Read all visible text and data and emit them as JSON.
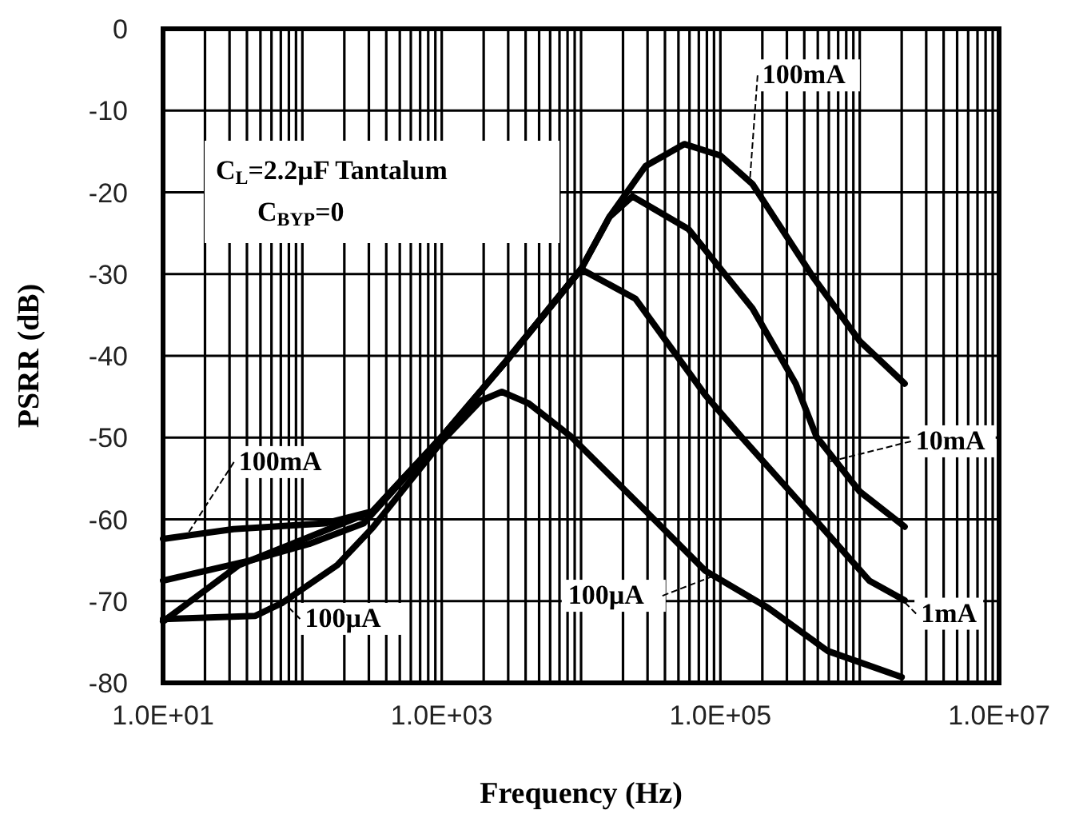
{
  "chart_data": {
    "type": "line",
    "xlabel": "Frequency (Hz)",
    "ylabel": "PSRR (dB)",
    "log": "x",
    "grid": true,
    "marker": "none",
    "line_style": "solid",
    "xlim": [
      10,
      10000000
    ],
    "ylim": [
      -80,
      0
    ],
    "xticks": [
      {
        "value": 10,
        "label": "1.0E+01"
      },
      {
        "value": 20,
        "label": null
      },
      {
        "value": 30,
        "label": null
      },
      {
        "value": 40,
        "label": null
      },
      {
        "value": 50,
        "label": null
      },
      {
        "value": 60,
        "label": null
      },
      {
        "value": 70,
        "label": null
      },
      {
        "value": 80,
        "label": null
      },
      {
        "value": 90,
        "label": null
      },
      {
        "value": 100,
        "label": null
      },
      {
        "value": 200,
        "label": null
      },
      {
        "value": 300,
        "label": null
      },
      {
        "value": 400,
        "label": null
      },
      {
        "value": 500,
        "label": null
      },
      {
        "value": 600,
        "label": null
      },
      {
        "value": 700,
        "label": null
      },
      {
        "value": 800,
        "label": null
      },
      {
        "value": 900,
        "label": null
      },
      {
        "value": 1000,
        "label": "1.0E+03"
      },
      {
        "value": 2000,
        "label": null
      },
      {
        "value": 3000,
        "label": null
      },
      {
        "value": 4000,
        "label": null
      },
      {
        "value": 5000,
        "label": null
      },
      {
        "value": 6000,
        "label": null
      },
      {
        "value": 7000,
        "label": null
      },
      {
        "value": 8000,
        "label": null
      },
      {
        "value": 9000,
        "label": null
      },
      {
        "value": 10000,
        "label": null
      },
      {
        "value": 20000,
        "label": null
      },
      {
        "value": 30000,
        "label": null
      },
      {
        "value": 40000,
        "label": null
      },
      {
        "value": 50000,
        "label": null
      },
      {
        "value": 60000,
        "label": null
      },
      {
        "value": 70000,
        "label": null
      },
      {
        "value": 80000,
        "label": null
      },
      {
        "value": 90000,
        "label": null
      },
      {
        "value": 100000,
        "label": "1.0E+05"
      },
      {
        "value": 200000,
        "label": null
      },
      {
        "value": 300000,
        "label": null
      },
      {
        "value": 400000,
        "label": null
      },
      {
        "value": 500000,
        "label": null
      },
      {
        "value": 600000,
        "label": null
      },
      {
        "value": 700000,
        "label": null
      },
      {
        "value": 800000,
        "label": null
      },
      {
        "value": 900000,
        "label": null
      },
      {
        "value": 1000000,
        "label": null
      },
      {
        "value": 2000000,
        "label": null
      },
      {
        "value": 3000000,
        "label": null
      },
      {
        "value": 4000000,
        "label": null
      },
      {
        "value": 5000000,
        "label": null
      },
      {
        "value": 6000000,
        "label": null
      },
      {
        "value": 7000000,
        "label": null
      },
      {
        "value": 8000000,
        "label": null
      },
      {
        "value": 9000000,
        "label": null
      },
      {
        "value": 10000000,
        "label": "1.0E+07"
      }
    ],
    "yticks": [
      0,
      -10,
      -20,
      -30,
      -40,
      -50,
      -60,
      -70,
      -80
    ],
    "series": [
      {
        "color": "#000000",
        "x": [
          10,
          32,
          145,
          320,
          1000,
          2950,
          10000,
          16000,
          29000,
          55000,
          100000,
          170000,
          460000,
          1000000,
          2100000
        ],
        "values": [
          -62.4,
          -61.2,
          -60.5,
          -59,
          -49.9,
          -40.5,
          -29.4,
          -23,
          -16.8,
          -14.1,
          -15.5,
          -19,
          -30.3,
          -38.2,
          -43.4
        ]
      },
      {
        "color": "#000000",
        "x": [
          10,
          43,
          112,
          275,
          1000,
          2950,
          10000,
          16000,
          23400,
          59000,
          170000,
          347000,
          490000,
          1000000,
          2100000
        ],
        "values": [
          -67.5,
          -65,
          -63,
          -60.5,
          -49.9,
          -40.5,
          -29.4,
          -23,
          -20.5,
          -24.5,
          -34.2,
          -43.4,
          -49.9,
          -56.6,
          -60.9
        ]
      },
      {
        "color": "#000000",
        "x": [
          10,
          35,
          100,
          320,
          1000,
          2950,
          10000,
          24500,
          78000,
          141000,
          460000,
          1170000,
          2100000
        ],
        "values": [
          -72.5,
          -65.6,
          -62.5,
          -59,
          -49.9,
          -40.5,
          -29.4,
          -33,
          -44.8,
          -49.9,
          -59.7,
          -67.5,
          -69.9
        ]
      },
      {
        "color": "#000000",
        "x": [
          10,
          46,
          72,
          178,
          320,
          1000,
          1900,
          2700,
          4200,
          8500,
          24500,
          78000,
          219000,
          589000,
          2000000
        ],
        "values": [
          -72.2,
          -71.8,
          -70.2,
          -65.6,
          -61,
          -50.5,
          -45.5,
          -44.4,
          -45.8,
          -49.9,
          -57.7,
          -66.3,
          -70.8,
          -76.1,
          -79.3
        ]
      }
    ],
    "annotations": [
      {
        "text": "100mA",
        "x": 162000,
        "y": -19
      },
      {
        "text": "10mA",
        "x": 590000,
        "y": -53
      },
      {
        "text": "1mA",
        "x": 1800000,
        "y": -69
      },
      {
        "text": "100µA",
        "x": 87000,
        "y": -67
      },
      {
        "text": "100mA",
        "x": 15,
        "y": -61.8
      },
      {
        "text": "100µA",
        "x": 80,
        "y": -70.8
      },
      "C$_{L}$=2.2µF Tantalum",
      "C$_{BYP}$=0"
    ]
  }
}
